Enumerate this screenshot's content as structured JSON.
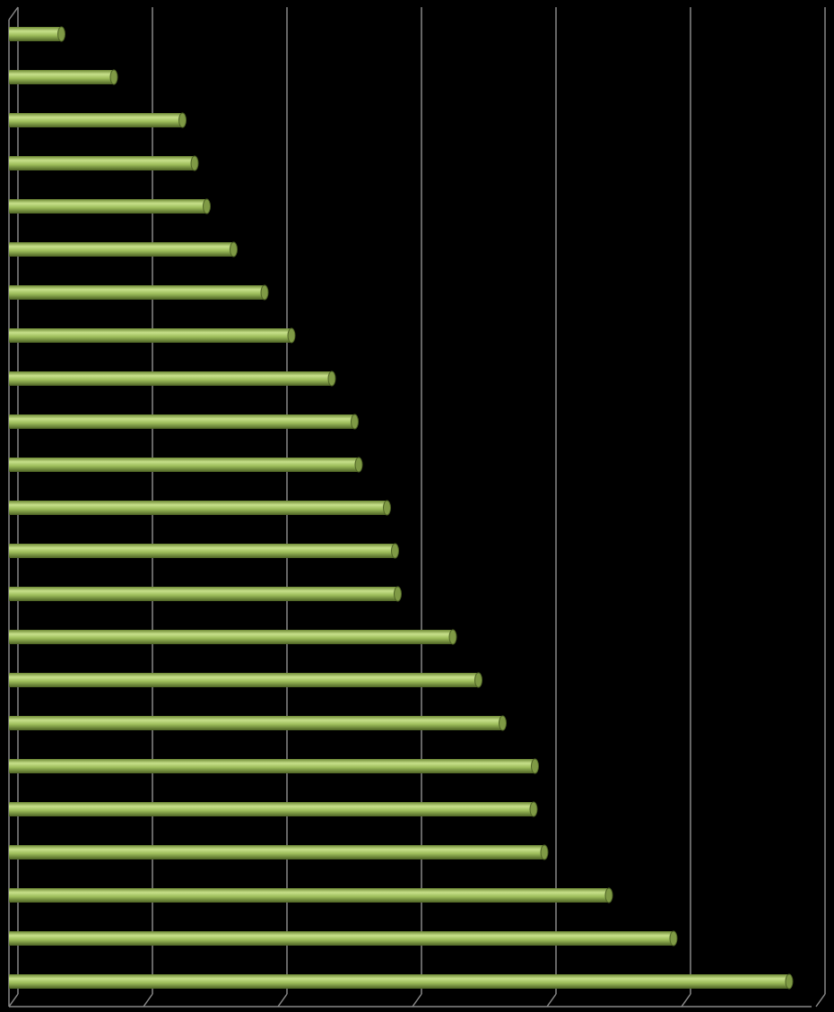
{
  "chart_data": {
    "type": "bar",
    "orientation": "horizontal",
    "categories": [
      null,
      null,
      null,
      null,
      null,
      null,
      null,
      null,
      null,
      null,
      null,
      null,
      null,
      null,
      null,
      null,
      null,
      null,
      null,
      null,
      null,
      null,
      null
    ],
    "values": [
      0.39,
      0.78,
      1.29,
      1.38,
      1.47,
      1.67,
      1.9,
      2.1,
      2.4,
      2.57,
      2.6,
      2.81,
      2.87,
      2.89,
      3.3,
      3.49,
      3.67,
      3.91,
      3.9,
      3.98,
      4.46,
      4.94,
      5.8
    ],
    "color": "#9bbb59",
    "xlim": [
      0,
      6
    ],
    "xticks": [
      0,
      1,
      2,
      3,
      4,
      5,
      6
    ],
    "grid": true
  }
}
